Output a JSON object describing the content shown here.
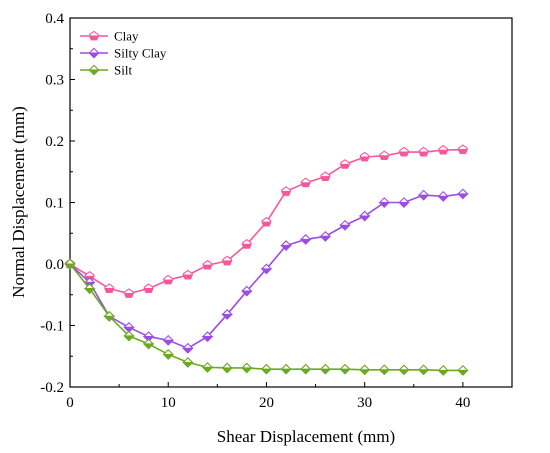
{
  "chart_data": {
    "type": "line",
    "title": "",
    "xlabel": "Shear Displacement (mm)",
    "ylabel": "Normal Displacement (mm)",
    "xlim": [
      0,
      45
    ],
    "ylim": [
      -0.2,
      0.4
    ],
    "xticks": [
      0,
      10,
      20,
      30,
      40
    ],
    "yticks": [
      -0.2,
      -0.1,
      0.0,
      0.1,
      0.2,
      0.3,
      0.4
    ],
    "ytick_labels": [
      "-0.2",
      "-0.1",
      "0.0",
      "0.1",
      "0.2",
      "0.3",
      "0.4"
    ],
    "grid": false,
    "legend": "top-left",
    "x": [
      0,
      2,
      4,
      6,
      8,
      10,
      12,
      14,
      16,
      18,
      20,
      22,
      24,
      26,
      28,
      30,
      32,
      34,
      36,
      38,
      40
    ],
    "series": [
      {
        "name": "Clay",
        "color": "#f4589c",
        "marker": "pentagon",
        "values": [
          0.0,
          -0.02,
          -0.04,
          -0.048,
          -0.04,
          -0.026,
          -0.018,
          -0.002,
          0.005,
          0.032,
          0.068,
          0.118,
          0.132,
          0.142,
          0.162,
          0.174,
          0.176,
          0.182,
          0.182,
          0.185,
          0.186
        ]
      },
      {
        "name": "Silty Clay",
        "color": "#9b4de6",
        "marker": "diamond",
        "values": [
          0.0,
          -0.03,
          -0.085,
          -0.103,
          -0.118,
          -0.124,
          -0.137,
          -0.118,
          -0.082,
          -0.044,
          -0.008,
          0.03,
          0.04,
          0.045,
          0.063,
          0.078,
          0.1,
          0.1,
          0.112,
          0.11,
          0.114
        ]
      },
      {
        "name": "Silt",
        "color": "#6aaa1e",
        "marker": "diamond",
        "values": [
          0.0,
          -0.04,
          -0.085,
          -0.117,
          -0.13,
          -0.147,
          -0.16,
          -0.168,
          -0.169,
          -0.169,
          -0.171,
          -0.171,
          -0.171,
          -0.171,
          -0.171,
          -0.172,
          -0.172,
          -0.172,
          -0.172,
          -0.173,
          -0.173
        ]
      }
    ]
  }
}
